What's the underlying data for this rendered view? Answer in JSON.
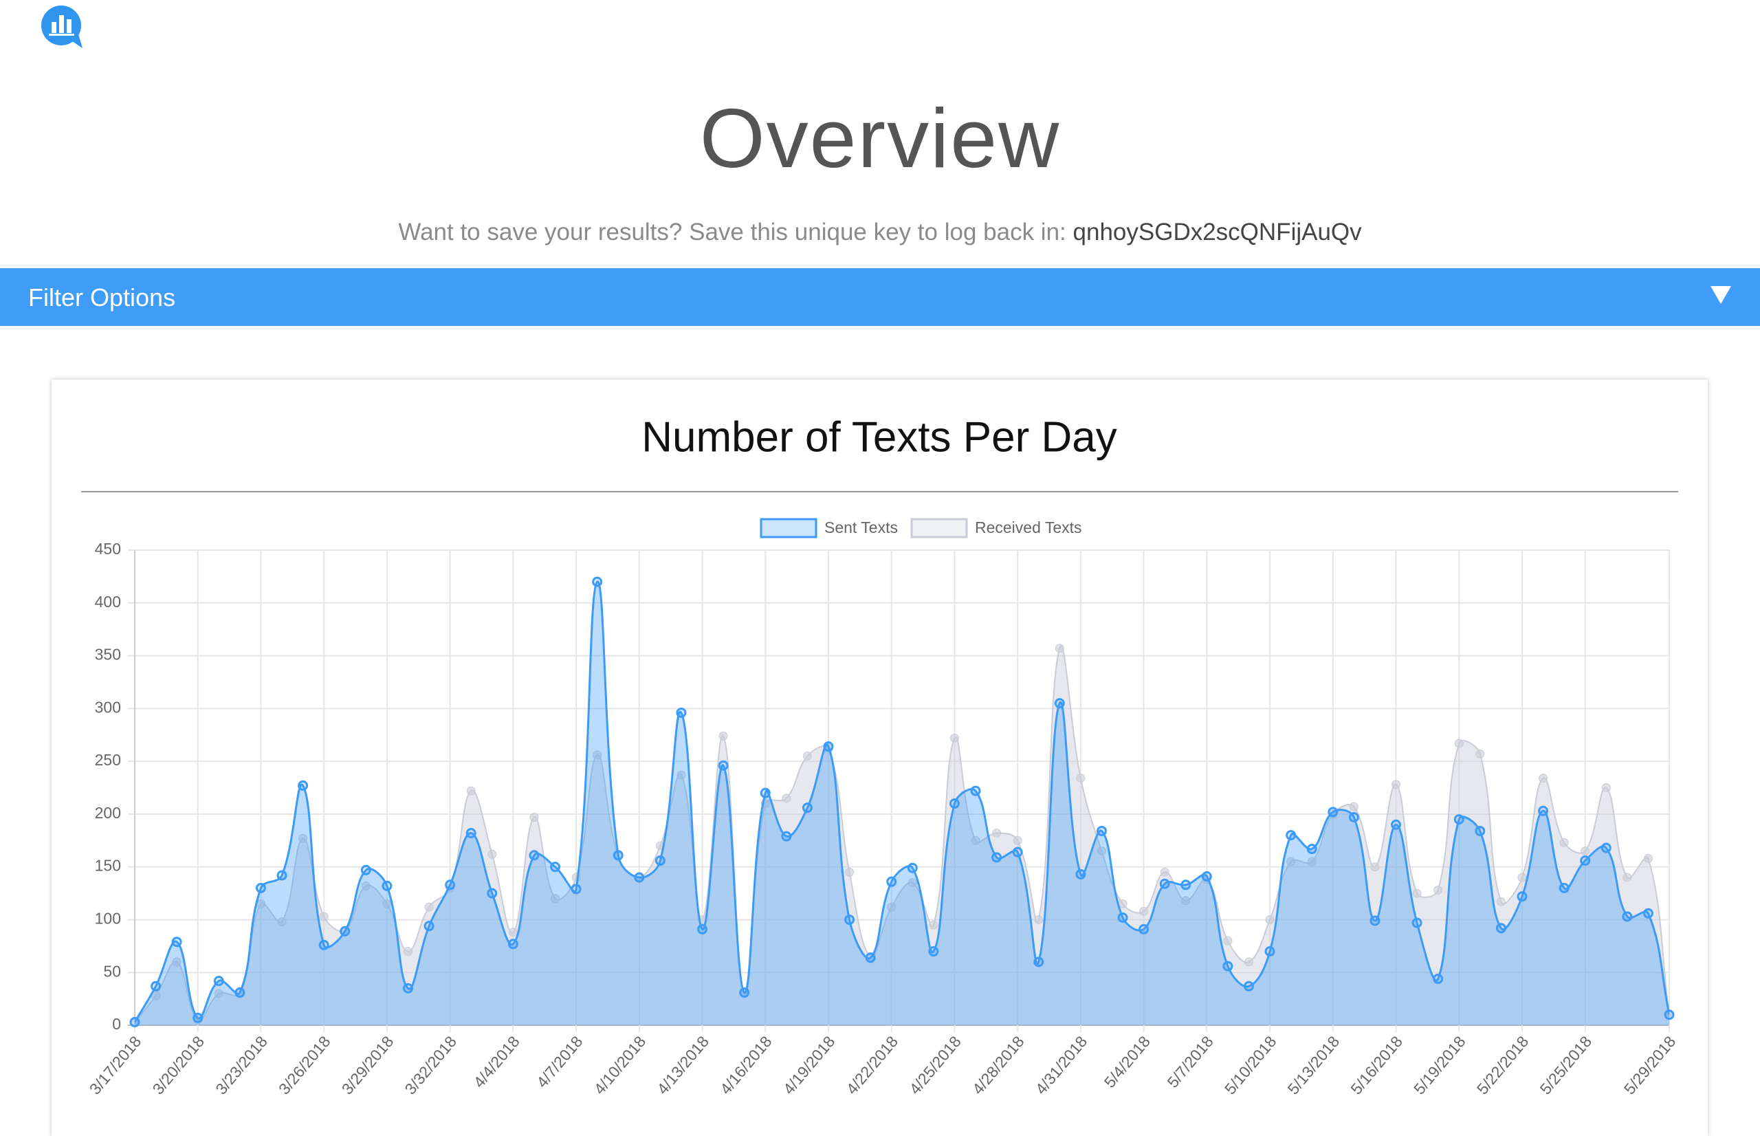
{
  "header": {
    "title": "Overview",
    "subtitle": "Want to save your results? Save this unique key to log back in:",
    "key": "qnhoySGDx2scQNFijAuQv"
  },
  "filter": {
    "label": "Filter Options"
  },
  "chart_data": {
    "type": "line",
    "title": "Number of Texts Per Day",
    "categories": [
      "3/17/2018",
      null,
      null,
      "3/20/2018",
      null,
      null,
      "3/23/2018",
      null,
      null,
      "3/26/2018",
      null,
      null,
      "3/29/2018",
      null,
      null,
      "3/32/2018",
      null,
      null,
      "4/4/2018",
      null,
      null,
      "4/7/2018",
      null,
      null,
      "4/10/2018",
      null,
      null,
      "4/13/2018",
      null,
      null,
      "4/16/2018",
      null,
      null,
      "4/19/2018",
      null,
      null,
      "4/22/2018",
      null,
      null,
      "4/25/2018",
      null,
      null,
      "4/28/2018",
      null,
      null,
      "4/31/2018",
      null,
      null,
      "5/4/2018",
      null,
      null,
      "5/7/2018",
      null,
      null,
      "5/10/2018",
      null,
      null,
      "5/13/2018",
      null,
      null,
      "5/16/2018",
      null,
      null,
      "5/19/2018",
      null,
      null,
      "5/22/2018",
      null,
      null,
      "5/25/2018",
      null,
      null,
      null,
      "5/29/2018"
    ],
    "series": [
      {
        "name": "Received Texts",
        "color": "#c9ccd6",
        "values": [
          3,
          28,
          60,
          5,
          30,
          30,
          115,
          98,
          177,
          103,
          90,
          132,
          115,
          70,
          112,
          130,
          222,
          162,
          88,
          197,
          120,
          140,
          256,
          160,
          140,
          170,
          237,
          100,
          274,
          30,
          210,
          215,
          255,
          262,
          145,
          65,
          112,
          135,
          95,
          272,
          175,
          182,
          175,
          100,
          357,
          234,
          165,
          115,
          108,
          145,
          118,
          138,
          80,
          60,
          100,
          155,
          155,
          200,
          207,
          150,
          228,
          125,
          128,
          267,
          257,
          117,
          140,
          234,
          173,
          165,
          225,
          140,
          158,
          10
        ]
      },
      {
        "name": "Sent Texts",
        "color": "#3d9bf8",
        "values": [
          3,
          37,
          79,
          7,
          42,
          31,
          130,
          142,
          227,
          76,
          89,
          147,
          132,
          35,
          94,
          133,
          182,
          125,
          77,
          161,
          150,
          129,
          420,
          161,
          140,
          156,
          296,
          91,
          246,
          31,
          220,
          179,
          206,
          264,
          100,
          64,
          136,
          149,
          70,
          210,
          222,
          159,
          164,
          60,
          305,
          143,
          184,
          102,
          91,
          134,
          133,
          141,
          56,
          37,
          70,
          180,
          167,
          202,
          197,
          99,
          190,
          97,
          44,
          195,
          184,
          92,
          122,
          203,
          130,
          156,
          168,
          103,
          106,
          10
        ]
      }
    ],
    "legend_order": [
      1,
      0
    ],
    "ylim": [
      0,
      450
    ],
    "yticks": [
      0,
      50,
      100,
      150,
      200,
      250,
      300,
      350,
      400,
      450
    ],
    "grid": true
  }
}
